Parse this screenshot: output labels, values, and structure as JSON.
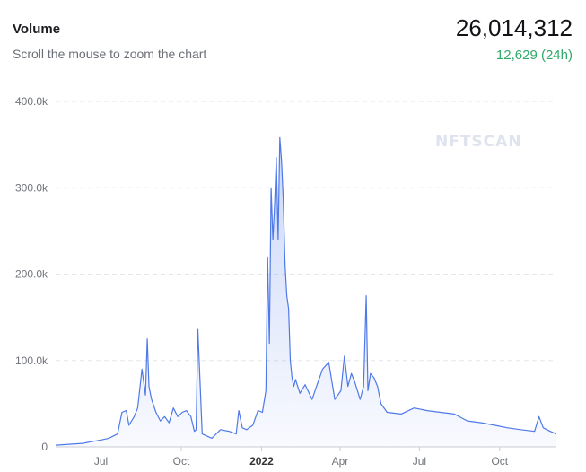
{
  "header": {
    "title": "Volume",
    "subtitle": "Scroll the mouse to zoom the chart",
    "total": "26,014,312",
    "change": "12,629 (24h)"
  },
  "watermark": "NFTSCAN",
  "colors": {
    "line": "#4f79e8",
    "positive": "#2eaa6a",
    "grid": "#e4e6ea"
  },
  "chart_data": {
    "type": "area",
    "title": "Volume",
    "ylim": [
      0,
      400000
    ],
    "y_ticks": [
      "0",
      "100.0k",
      "200.0k",
      "300.0k",
      "400.0k"
    ],
    "x_ticks": [
      "Jul",
      "Oct",
      "2022",
      "Apr",
      "Jul",
      "Oct"
    ],
    "grid": true,
    "series": [
      {
        "x": [
          "2021-05-10",
          "2021-05-25",
          "2021-06-10",
          "2021-06-20",
          "2021-07-01",
          "2021-07-10",
          "2021-07-20",
          "2021-07-25",
          "2021-07-30",
          "2021-08-02",
          "2021-08-08",
          "2021-08-12",
          "2021-08-17",
          "2021-08-21",
          "2021-08-23",
          "2021-08-25",
          "2021-08-28",
          "2021-09-02",
          "2021-09-07",
          "2021-09-12",
          "2021-09-17",
          "2021-09-22",
          "2021-09-27",
          "2021-10-02",
          "2021-10-07",
          "2021-10-12",
          "2021-10-16",
          "2021-10-18",
          "2021-10-20",
          "2021-10-25",
          "2021-11-05",
          "2021-11-15",
          "2021-11-25",
          "2021-12-03",
          "2021-12-06",
          "2021-12-10",
          "2021-12-15",
          "2021-12-22",
          "2021-12-28",
          "2022-01-02",
          "2022-01-06",
          "2022-01-08",
          "2022-01-10",
          "2022-01-12",
          "2022-01-14",
          "2022-01-16",
          "2022-01-18",
          "2022-01-20",
          "2022-01-22",
          "2022-01-24",
          "2022-01-26",
          "2022-01-28",
          "2022-01-30",
          "2022-02-01",
          "2022-02-03",
          "2022-02-05",
          "2022-02-07",
          "2022-02-09",
          "2022-02-14",
          "2022-02-20",
          "2022-02-28",
          "2022-03-05",
          "2022-03-12",
          "2022-03-19",
          "2022-03-26",
          "2022-04-02",
          "2022-04-06",
          "2022-04-10",
          "2022-04-14",
          "2022-04-18",
          "2022-04-24",
          "2022-04-28",
          "2022-05-01",
          "2022-05-03",
          "2022-05-06",
          "2022-05-10",
          "2022-05-14",
          "2022-05-18",
          "2022-05-25",
          "2022-06-10",
          "2022-06-25",
          "2022-07-10",
          "2022-07-25",
          "2022-08-10",
          "2022-08-25",
          "2022-09-10",
          "2022-09-25",
          "2022-10-10",
          "2022-10-25",
          "2022-11-10",
          "2022-11-15",
          "2022-11-20",
          "2022-11-28",
          "2022-12-05"
        ],
        "values": [
          2000,
          3000,
          4000,
          6000,
          8000,
          10000,
          15000,
          40000,
          42000,
          25000,
          35000,
          45000,
          90000,
          60000,
          125000,
          70000,
          55000,
          40000,
          30000,
          35000,
          28000,
          45000,
          35000,
          40000,
          42000,
          35000,
          18000,
          20000,
          136000,
          15000,
          10000,
          20000,
          18000,
          15000,
          42000,
          22000,
          20000,
          25000,
          42000,
          40000,
          65000,
          220000,
          120000,
          300000,
          240000,
          280000,
          335000,
          240000,
          358000,
          330000,
          285000,
          210000,
          175000,
          160000,
          100000,
          80000,
          70000,
          78000,
          62000,
          72000,
          55000,
          70000,
          90000,
          98000,
          55000,
          65000,
          105000,
          70000,
          85000,
          75000,
          55000,
          70000,
          175000,
          65000,
          85000,
          80000,
          70000,
          50000,
          40000,
          38000,
          45000,
          42000,
          40000,
          38000,
          30000,
          28000,
          25000,
          22000,
          20000,
          18000,
          35000,
          22000,
          18000,
          15000
        ]
      }
    ]
  }
}
